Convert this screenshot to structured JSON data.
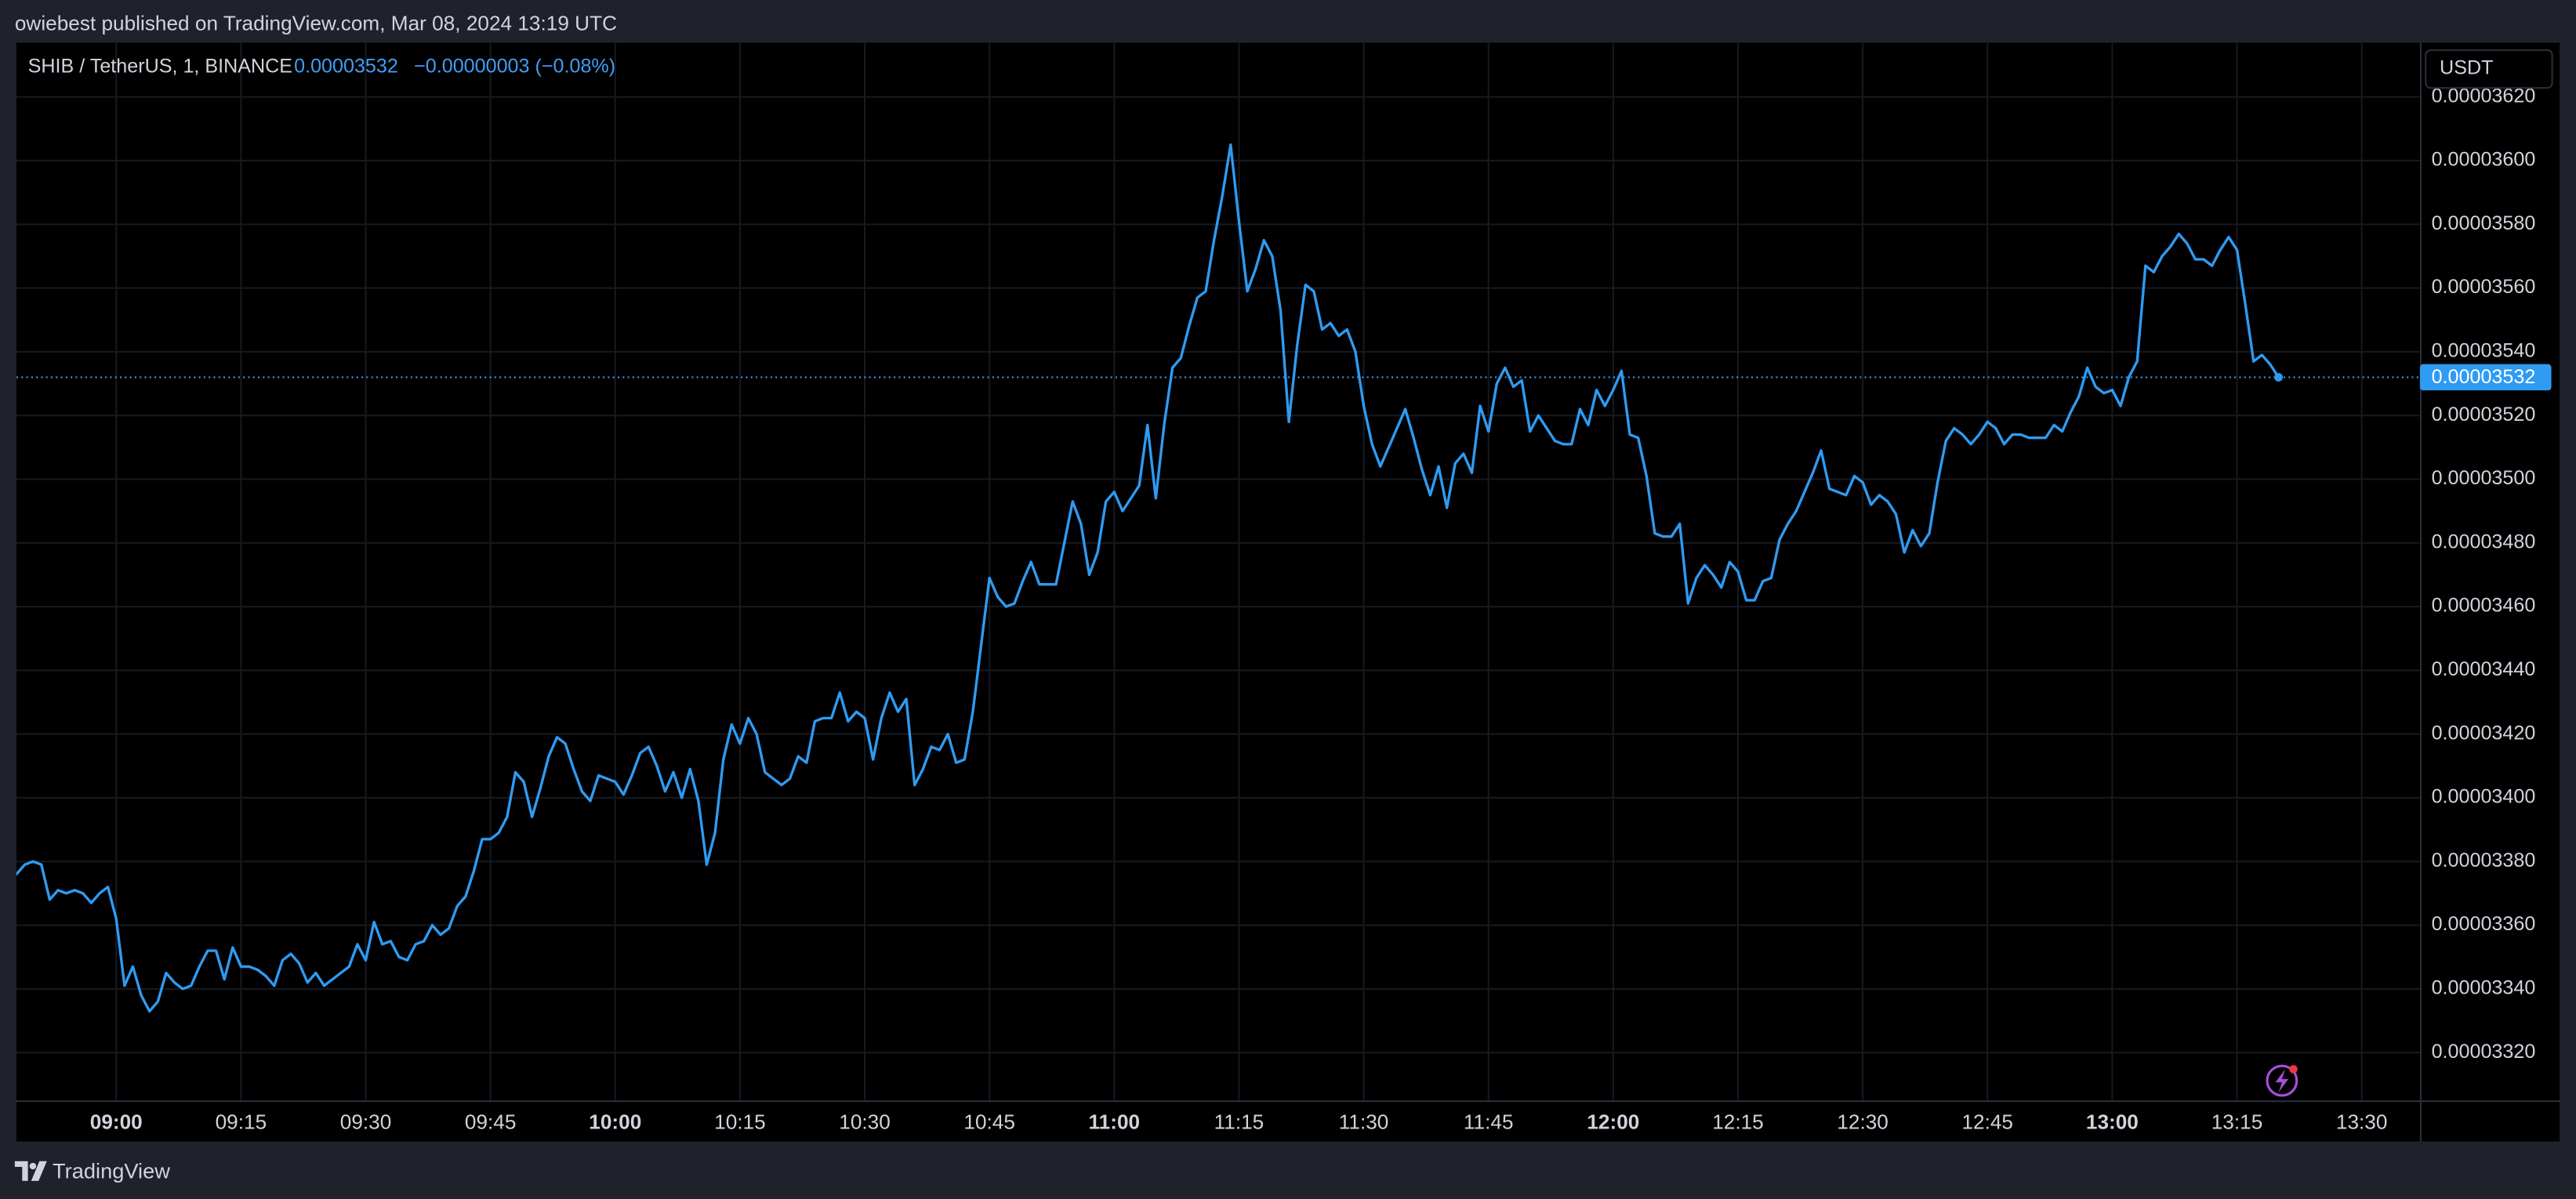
{
  "header": {
    "text": "owiebest published on TradingView.com, Mar 08, 2024 13:19 UTC"
  },
  "footer": {
    "text": "TradingView"
  },
  "chart_data": {
    "type": "line",
    "title": "SHIB / TetherUS, 1, BINANCE",
    "last_value": {
      "value": 3.532e-05,
      "label": "0.00003532"
    },
    "change": "−0.00000003 (−0.08%)",
    "currency": "USDT",
    "color": "#2f9bf2",
    "grid": true,
    "xlim": [
      "08:48",
      "13:37"
    ],
    "xticks": [
      "09:00",
      "09:15",
      "09:30",
      "09:45",
      "10:00",
      "10:15",
      "10:30",
      "10:45",
      "11:00",
      "11:15",
      "11:30",
      "11:45",
      "12:00",
      "12:15",
      "12:30",
      "12:45",
      "13:00",
      "13:15",
      "13:30"
    ],
    "ylim": [
      3.305e-05,
      3.637e-05
    ],
    "yticks": [
      {
        "value": 3.32e-05,
        "label": "0.00003320"
      },
      {
        "value": 3.34e-05,
        "label": "0.00003340"
      },
      {
        "value": 3.36e-05,
        "label": "0.00003360"
      },
      {
        "value": 3.38e-05,
        "label": "0.00003380"
      },
      {
        "value": 3.4e-05,
        "label": "0.00003400"
      },
      {
        "value": 3.42e-05,
        "label": "0.00003420"
      },
      {
        "value": 3.44e-05,
        "label": "0.00003440"
      },
      {
        "value": 3.46e-05,
        "label": "0.00003460"
      },
      {
        "value": 3.48e-05,
        "label": "0.00003480"
      },
      {
        "value": 3.5e-05,
        "label": "0.00003500"
      },
      {
        "value": 3.52e-05,
        "label": "0.00003520"
      },
      {
        "value": 3.54e-05,
        "label": "0.00003540"
      },
      {
        "value": 3.56e-05,
        "label": "0.00003560"
      },
      {
        "value": 3.58e-05,
        "label": "0.00003580"
      },
      {
        "value": 3.6e-05,
        "label": "0.00003600"
      },
      {
        "value": 3.62e-05,
        "label": "0.00003620"
      }
    ],
    "x": [
      "08:47",
      "08:48",
      "08:49",
      "08:50",
      "08:51",
      "08:52",
      "08:53",
      "08:54",
      "08:55",
      "08:56",
      "08:57",
      "08:58",
      "08:59",
      "09:00",
      "09:01",
      "09:02",
      "09:03",
      "09:04",
      "09:05",
      "09:06",
      "09:07",
      "09:08",
      "09:09",
      "09:10",
      "09:11",
      "09:12",
      "09:13",
      "09:14",
      "09:15",
      "09:16",
      "09:17",
      "09:18",
      "09:19",
      "09:20",
      "09:21",
      "09:22",
      "09:23",
      "09:24",
      "09:25",
      "09:26",
      "09:27",
      "09:28",
      "09:29",
      "09:30",
      "09:31",
      "09:32",
      "09:33",
      "09:34",
      "09:35",
      "09:36",
      "09:37",
      "09:38",
      "09:39",
      "09:40",
      "09:41",
      "09:42",
      "09:43",
      "09:44",
      "09:45",
      "09:46",
      "09:47",
      "09:48",
      "09:49",
      "09:50",
      "09:51",
      "09:52",
      "09:53",
      "09:54",
      "09:55",
      "09:56",
      "09:57",
      "09:58",
      "09:59",
      "10:00",
      "10:01",
      "10:02",
      "10:03",
      "10:04",
      "10:05",
      "10:06",
      "10:07",
      "10:08",
      "10:09",
      "10:10",
      "10:11",
      "10:12",
      "10:13",
      "10:14",
      "10:15",
      "10:16",
      "10:17",
      "10:18",
      "10:19",
      "10:20",
      "10:21",
      "10:22",
      "10:23",
      "10:24",
      "10:25",
      "10:26",
      "10:27",
      "10:28",
      "10:29",
      "10:30",
      "10:31",
      "10:32",
      "10:33",
      "10:34",
      "10:35",
      "10:36",
      "10:37",
      "10:38",
      "10:39",
      "10:40",
      "10:41",
      "10:42",
      "10:43",
      "10:44",
      "10:45",
      "10:46",
      "10:47",
      "10:48",
      "10:49",
      "10:50",
      "10:51",
      "10:52",
      "10:53",
      "10:54",
      "10:55",
      "10:56",
      "10:57",
      "10:58",
      "10:59",
      "11:00",
      "11:01",
      "11:02",
      "11:03",
      "11:04",
      "11:05",
      "11:06",
      "11:07",
      "11:08",
      "11:09",
      "11:10",
      "11:11",
      "11:12",
      "11:13",
      "11:14",
      "11:15",
      "11:16",
      "11:17",
      "11:18",
      "11:19",
      "11:20",
      "11:21",
      "11:22",
      "11:23",
      "11:24",
      "11:25",
      "11:26",
      "11:27",
      "11:28",
      "11:29",
      "11:30",
      "11:31",
      "11:32",
      "11:33",
      "11:34",
      "11:35",
      "11:36",
      "11:37",
      "11:38",
      "11:39",
      "11:40",
      "11:41",
      "11:42",
      "11:43",
      "11:44",
      "11:45",
      "11:46",
      "11:47",
      "11:48",
      "11:49",
      "11:50",
      "11:51",
      "11:52",
      "11:53",
      "11:54",
      "11:55",
      "11:56",
      "11:57",
      "11:58",
      "11:59",
      "12:00",
      "12:01",
      "12:02",
      "12:03",
      "12:04",
      "12:05",
      "12:06",
      "12:07",
      "12:08",
      "12:09",
      "12:10",
      "12:11",
      "12:12",
      "12:13",
      "12:14",
      "12:15",
      "12:16",
      "12:17",
      "12:18",
      "12:19",
      "12:20",
      "12:21",
      "12:22",
      "12:23",
      "12:24",
      "12:25",
      "12:26",
      "12:27",
      "12:28",
      "12:29",
      "12:30",
      "12:31",
      "12:32",
      "12:33",
      "12:34",
      "12:35",
      "12:36",
      "12:37",
      "12:38",
      "12:39",
      "12:40",
      "12:41",
      "12:42",
      "12:43",
      "12:44",
      "12:45",
      "12:46",
      "12:47",
      "12:48",
      "12:49",
      "12:50",
      "12:51",
      "12:52",
      "12:53",
      "12:54",
      "12:55",
      "12:56",
      "12:57",
      "12:58",
      "12:59",
      "13:00",
      "13:01",
      "13:02",
      "13:03",
      "13:04",
      "13:05",
      "13:06",
      "13:07",
      "13:08",
      "13:09",
      "13:10",
      "13:11",
      "13:12",
      "13:13",
      "13:14",
      "13:15",
      "13:16",
      "13:17",
      "13:18",
      "13:19",
      "13:20"
    ],
    "values": [
      3.38e-05,
      3.376e-05,
      3.379e-05,
      3.38e-05,
      3.379e-05,
      3.368e-05,
      3.371e-05,
      3.37e-05,
      3.371e-05,
      3.37e-05,
      3.367e-05,
      3.37e-05,
      3.372e-05,
      3.362e-05,
      3.341e-05,
      3.347e-05,
      3.338e-05,
      3.333e-05,
      3.336e-05,
      3.345e-05,
      3.342e-05,
      3.34e-05,
      3.341e-05,
      3.347e-05,
      3.352e-05,
      3.352e-05,
      3.343e-05,
      3.353e-05,
      3.347e-05,
      3.347e-05,
      3.346e-05,
      3.344e-05,
      3.341e-05,
      3.349e-05,
      3.351e-05,
      3.348e-05,
      3.342e-05,
      3.345e-05,
      3.341e-05,
      3.343e-05,
      3.345e-05,
      3.347e-05,
      3.354e-05,
      3.349e-05,
      3.361e-05,
      3.354e-05,
      3.355e-05,
      3.35e-05,
      3.349e-05,
      3.354e-05,
      3.355e-05,
      3.36e-05,
      3.357e-05,
      3.359e-05,
      3.366e-05,
      3.369e-05,
      3.377e-05,
      3.387e-05,
      3.387e-05,
      3.389e-05,
      3.394e-05,
      3.408e-05,
      3.405e-05,
      3.394e-05,
      3.403e-05,
      3.413e-05,
      3.419e-05,
      3.417e-05,
      3.409e-05,
      3.402e-05,
      3.399e-05,
      3.407e-05,
      3.406e-05,
      3.405e-05,
      3.401e-05,
      3.407e-05,
      3.414e-05,
      3.416e-05,
      3.41e-05,
      3.402e-05,
      3.408e-05,
      3.4e-05,
      3.409e-05,
      3.399e-05,
      3.379e-05,
      3.389e-05,
      3.412e-05,
      3.423e-05,
      3.417e-05,
      3.425e-05,
      3.42e-05,
      3.408e-05,
      3.406e-05,
      3.404e-05,
      3.406e-05,
      3.413e-05,
      3.411e-05,
      3.424e-05,
      3.425e-05,
      3.425e-05,
      3.433e-05,
      3.424e-05,
      3.427e-05,
      3.425e-05,
      3.412e-05,
      3.425e-05,
      3.433e-05,
      3.427e-05,
      3.431e-05,
      3.404e-05,
      3.409e-05,
      3.416e-05,
      3.415e-05,
      3.42e-05,
      3.411e-05,
      3.412e-05,
      3.427e-05,
      3.448e-05,
      3.469e-05,
      3.463e-05,
      3.46e-05,
      3.461e-05,
      3.468e-05,
      3.474e-05,
      3.467e-05,
      3.467e-05,
      3.467e-05,
      3.48e-05,
      3.493e-05,
      3.486e-05,
      3.47e-05,
      3.477e-05,
      3.493e-05,
      3.496e-05,
      3.49e-05,
      3.494e-05,
      3.498e-05,
      3.517e-05,
      3.494e-05,
      3.517e-05,
      3.535e-05,
      3.538e-05,
      3.548e-05,
      3.557e-05,
      3.559e-05,
      3.575e-05,
      3.589e-05,
      3.605e-05,
      3.581e-05,
      3.559e-05,
      3.566e-05,
      3.575e-05,
      3.57e-05,
      3.553e-05,
      3.518e-05,
      3.542e-05,
      3.561e-05,
      3.559e-05,
      3.547e-05,
      3.549e-05,
      3.545e-05,
      3.547e-05,
      3.54e-05,
      3.523e-05,
      3.511e-05,
      3.504e-05,
      3.51e-05,
      3.516e-05,
      3.522e-05,
      3.513e-05,
      3.503e-05,
      3.495e-05,
      3.504e-05,
      3.491e-05,
      3.505e-05,
      3.508e-05,
      3.502e-05,
      3.523e-05,
      3.515e-05,
      3.53e-05,
      3.535e-05,
      3.529e-05,
      3.531e-05,
      3.515e-05,
      3.52e-05,
      3.516e-05,
      3.512e-05,
      3.511e-05,
      3.511e-05,
      3.522e-05,
      3.517e-05,
      3.528e-05,
      3.523e-05,
      3.528e-05,
      3.534e-05,
      3.514e-05,
      3.513e-05,
      3.501e-05,
      3.483e-05,
      3.482e-05,
      3.482e-05,
      3.486e-05,
      3.461e-05,
      3.469e-05,
      3.473e-05,
      3.47e-05,
      3.466e-05,
      3.474e-05,
      3.471e-05,
      3.462e-05,
      3.462e-05,
      3.468e-05,
      3.469e-05,
      3.481e-05,
      3.486e-05,
      3.49e-05,
      3.496e-05,
      3.502e-05,
      3.509e-05,
      3.497e-05,
      3.496e-05,
      3.495e-05,
      3.501e-05,
      3.499e-05,
      3.492e-05,
      3.495e-05,
      3.493e-05,
      3.489e-05,
      3.477e-05,
      3.484e-05,
      3.479e-05,
      3.483e-05,
      3.499e-05,
      3.512e-05,
      3.516e-05,
      3.514e-05,
      3.511e-05,
      3.514e-05,
      3.518e-05,
      3.516e-05,
      3.511e-05,
      3.514e-05,
      3.514e-05,
      3.513e-05,
      3.513e-05,
      3.513e-05,
      3.517e-05,
      3.515e-05,
      3.521e-05,
      3.526e-05,
      3.535e-05,
      3.529e-05,
      3.527e-05,
      3.528e-05,
      3.523e-05,
      3.532e-05,
      3.537e-05,
      3.567e-05,
      3.565e-05,
      3.57e-05,
      3.573e-05,
      3.577e-05,
      3.574e-05,
      3.569e-05,
      3.569e-05,
      3.567e-05,
      3.572e-05,
      3.576e-05,
      3.572e-05,
      3.555e-05,
      3.537e-05,
      3.539e-05,
      3.536e-05,
      3.532e-05
    ]
  }
}
